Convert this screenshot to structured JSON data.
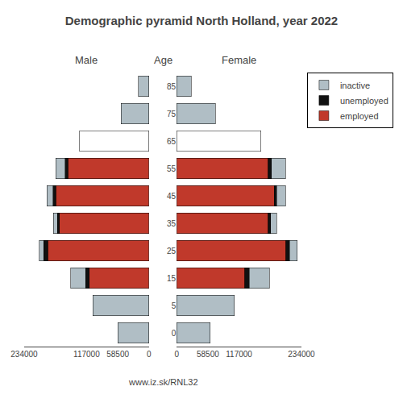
{
  "chart_data": [
    {
      "type": "bar",
      "orientation": "horizontal",
      "stacked": true,
      "title": "Demographic pyramid North Holland, year 2022",
      "subtitle": "Male",
      "annotations": [
        "www.iz.sk/RNL32"
      ],
      "categories": [
        "85",
        "75",
        "65",
        "55",
        "45",
        "35",
        "25",
        "15",
        "5",
        "0"
      ],
      "series": [
        {
          "name": "employed",
          "color": "#c0392b",
          "values": [
            0,
            0,
            0,
            152000,
            175000,
            168000,
            190000,
            112000,
            0,
            0
          ]
        },
        {
          "name": "unemployed",
          "color": "#111111",
          "values": [
            0,
            0,
            0,
            5500,
            5000,
            4000,
            7000,
            6500,
            0,
            0
          ]
        },
        {
          "name": "inactive",
          "colors": [
            "#b0bec5",
            "#b0bec5",
            "white",
            "#b0bec5",
            "#b0bec5",
            "#b0bec5",
            "#b0bec5",
            "#b0bec5",
            "#b0bec5",
            "#b0bec5"
          ],
          "values": [
            20000,
            52000,
            130000,
            17000,
            11000,
            7000,
            9000,
            28000,
            105000,
            58000
          ]
        }
      ],
      "xlim": [
        234000,
        0
      ],
      "xticks": [
        234000,
        117000,
        58500,
        0
      ],
      "grid": false,
      "tick_labels": "x"
    },
    {
      "type": "bar",
      "orientation": "horizontal",
      "stacked": true,
      "subtitle": "Female",
      "ylabel": "Age",
      "categories": [
        "85",
        "75",
        "65",
        "55",
        "45",
        "35",
        "25",
        "15",
        "5",
        "0"
      ],
      "series": [
        {
          "name": "employed",
          "color": "#c0392b",
          "values": [
            0,
            0,
            0,
            172000,
            183000,
            172000,
            205000,
            128000,
            0,
            0
          ]
        },
        {
          "name": "unemployed",
          "color": "#111111",
          "values": [
            0,
            0,
            0,
            5500,
            4500,
            4500,
            7000,
            8000,
            0,
            0
          ]
        },
        {
          "name": "inactive",
          "colors": [
            "#b0bec5",
            "#b0bec5",
            "white",
            "#b0bec5",
            "#b0bec5",
            "#b0bec5",
            "#b0bec5",
            "#b0bec5",
            "#b0bec5",
            "#b0bec5"
          ],
          "values": [
            27000,
            73000,
            158000,
            27000,
            17000,
            11000,
            14000,
            38000,
            108000,
            63000
          ]
        }
      ],
      "xlim": [
        0,
        234000
      ],
      "xticks": [
        0,
        58500,
        117000,
        234000
      ],
      "grid": false,
      "legend": "upper right"
    }
  ]
}
